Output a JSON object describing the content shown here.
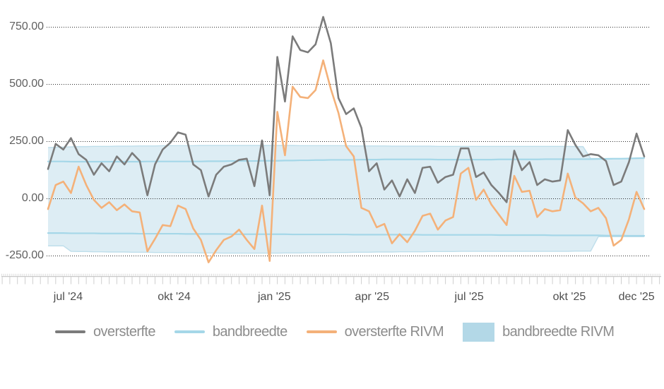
{
  "chart_data": {
    "type": "line",
    "title": "",
    "x_axis": {
      "labels": [
        {
          "text": "jul '24",
          "week": 2.63
        },
        {
          "text": "okt '24",
          "week": 16.5
        },
        {
          "text": "jan '25",
          "week": 29.6
        },
        {
          "text": "apr '25",
          "week": 42.4
        },
        {
          "text": "jul '25",
          "week": 55.1
        },
        {
          "text": "okt '25",
          "week": 68.2
        },
        {
          "text": "dec '25",
          "week": 77.0
        }
      ]
    },
    "y_axis": {
      "ticks": [
        {
          "text": "750.00",
          "value": 750
        },
        {
          "text": "500.00",
          "value": 500
        },
        {
          "text": "250.00",
          "value": 250
        },
        {
          "text": "0.00",
          "value": 0
        },
        {
          "text": "-250.00",
          "value": -250
        }
      ],
      "range": [
        -340,
        860
      ],
      "gridlines": "dotted"
    },
    "series": [
      {
        "name": "oversterfte",
        "type": "line",
        "color": "#7b7b7b",
        "values": [
          130,
          240,
          215,
          265,
          195,
          170,
          105,
          155,
          120,
          185,
          150,
          200,
          165,
          15,
          150,
          215,
          245,
          290,
          280,
          150,
          125,
          10,
          105,
          140,
          150,
          170,
          175,
          55,
          255,
          15,
          620,
          425,
          710,
          650,
          640,
          675,
          795,
          680,
          440,
          370,
          395,
          310,
          120,
          155,
          40,
          80,
          10,
          85,
          25,
          135,
          140,
          70,
          95,
          105,
          220,
          220,
          95,
          115,
          60,
          25,
          -15,
          210,
          125,
          160,
          60,
          85,
          75,
          80,
          300,
          235,
          185,
          195,
          190,
          165,
          60,
          75,
          160,
          285,
          185
        ]
      },
      {
        "name": "bandbreedte",
        "type": "band-lines",
        "color": "#a5d7e8",
        "upper": [
          163,
          163,
          163,
          162,
          162,
          162,
          162,
          162,
          162,
          162,
          162,
          162,
          162,
          163,
          163,
          163,
          163,
          163,
          163,
          163,
          163,
          164,
          164,
          164,
          165,
          165,
          165,
          165,
          166,
          166,
          166,
          167,
          167,
          168,
          168,
          169,
          169,
          170,
          170,
          170,
          170,
          171,
          171,
          171,
          172,
          172,
          172,
          172,
          172,
          172,
          172,
          171,
          171,
          171,
          171,
          171,
          171,
          171,
          171,
          172,
          172,
          172,
          172,
          172,
          172,
          173,
          173,
          173,
          173,
          173,
          173,
          173,
          174,
          174,
          175,
          175,
          176,
          177,
          178
        ],
        "lower": [
          -150,
          -150,
          -150,
          -151,
          -151,
          -151,
          -151,
          -152,
          -152,
          -152,
          -152,
          -152,
          -153,
          -153,
          -153,
          -153,
          -153,
          -153,
          -154,
          -154,
          -154,
          -154,
          -154,
          -154,
          -155,
          -155,
          -155,
          -155,
          -155,
          -155,
          -155,
          -155,
          -156,
          -156,
          -156,
          -156,
          -156,
          -156,
          -156,
          -156,
          -157,
          -157,
          -157,
          -157,
          -157,
          -157,
          -157,
          -157,
          -157,
          -158,
          -158,
          -158,
          -158,
          -158,
          -158,
          -158,
          -158,
          -158,
          -158,
          -159,
          -159,
          -159,
          -159,
          -159,
          -159,
          -159,
          -160,
          -160,
          -160,
          -160,
          -160,
          -160,
          -160,
          -161,
          -161,
          -161,
          -162,
          -162,
          -162
        ]
      },
      {
        "name": "oversterfte RIVM",
        "type": "line",
        "color": "#f4b179",
        "values": [
          -45,
          60,
          75,
          25,
          140,
          60,
          -5,
          -40,
          -15,
          -50,
          -25,
          -55,
          -60,
          -230,
          -175,
          -115,
          -120,
          -30,
          -45,
          -130,
          -180,
          -278,
          -225,
          -180,
          -165,
          -135,
          -180,
          -220,
          -30,
          -272,
          380,
          190,
          490,
          445,
          440,
          475,
          605,
          480,
          375,
          230,
          185,
          -40,
          -55,
          -125,
          -110,
          -195,
          -155,
          -190,
          -140,
          -75,
          -65,
          -135,
          -95,
          -80,
          110,
          135,
          -5,
          40,
          -25,
          -70,
          -115,
          100,
          30,
          35,
          -80,
          -45,
          -55,
          -50,
          110,
          5,
          -20,
          -55,
          -40,
          -85,
          -205,
          -180,
          -90,
          30,
          -45
        ]
      },
      {
        "name": "bandbreedte RIVM",
        "type": "band",
        "color": "#b3d8e7",
        "upper": [
          224,
          225,
          226,
          227,
          228,
          228,
          229,
          229,
          229,
          230,
          230,
          230,
          231,
          231,
          231,
          232,
          232,
          232,
          232,
          232,
          233,
          233,
          233,
          233,
          233,
          233,
          233,
          233,
          233,
          233,
          233,
          233,
          233,
          232,
          232,
          232,
          232,
          232,
          232,
          232,
          231,
          231,
          231,
          231,
          231,
          230,
          230,
          230,
          230,
          230,
          230,
          229,
          229,
          229,
          229,
          229,
          229,
          229,
          229,
          229,
          229,
          229,
          229,
          229,
          229,
          229,
          229,
          229,
          229,
          228,
          228,
          176,
          176,
          176,
          176,
          176,
          176,
          176,
          176
        ],
        "lower": [
          -206,
          -206,
          -206,
          -230,
          -231,
          -231,
          -232,
          -232,
          -233,
          -233,
          -233,
          -234,
          -234,
          -234,
          -235,
          -235,
          -235,
          -236,
          -236,
          -236,
          -237,
          -237,
          -237,
          -238,
          -238,
          -238,
          -238,
          -238,
          -238,
          -238,
          -238,
          -237,
          -237,
          -237,
          -236,
          -236,
          -236,
          -235,
          -235,
          -235,
          -234,
          -234,
          -234,
          -233,
          -233,
          -233,
          -232,
          -232,
          -232,
          -232,
          -231,
          -231,
          -231,
          -231,
          -230,
          -230,
          -230,
          -230,
          -230,
          -230,
          -230,
          -230,
          -230,
          -230,
          -230,
          -230,
          -230,
          -230,
          -230,
          -229,
          -229,
          -229,
          -166,
          -166,
          -166,
          -166,
          -166,
          -166,
          -166
        ]
      }
    ]
  },
  "legend": {
    "items": [
      {
        "label": "oversterfte",
        "swatch": "line",
        "color": "#7b7b7b"
      },
      {
        "label": "bandbreedte",
        "swatch": "line",
        "color": "#a5d7e8"
      },
      {
        "label": "oversterfte RIVM",
        "swatch": "line",
        "color": "#f4b179"
      },
      {
        "label": "bandbreedte RIVM",
        "swatch": "area",
        "color": "#b3d8e7"
      }
    ]
  },
  "colors": {
    "gridline": "#2b2b2b",
    "axis_text": "#5a5a5a",
    "legend_text": "#8c8c8c",
    "ruler": "#c9c9c9",
    "band_fill_opacity": "0.45"
  }
}
